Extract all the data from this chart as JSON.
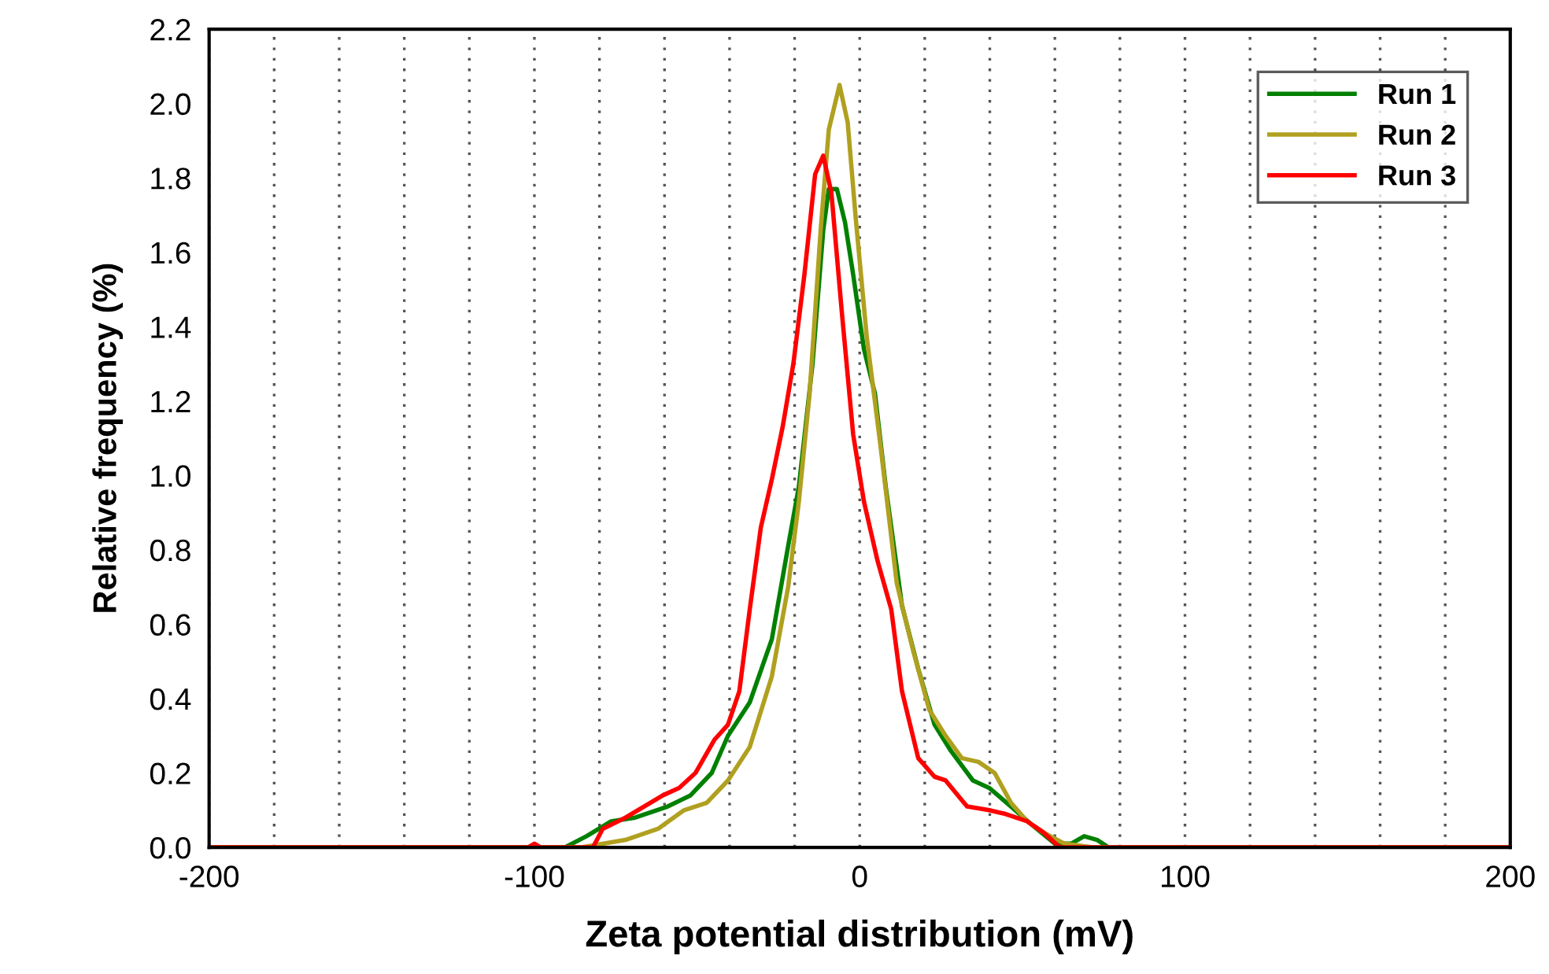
{
  "chart_data": {
    "type": "line",
    "xlabel": "Zeta potential distribution (mV)",
    "ylabel": "Relative frequency (%)",
    "xlim": [
      -200,
      200
    ],
    "ylim": [
      0,
      2.2
    ],
    "xticks": [
      -200,
      {
        "value": -180,
        "label": null
      },
      {
        "value": -160,
        "label": null
      },
      {
        "value": -140,
        "label": null
      },
      {
        "value": -120,
        "label": null
      },
      -100,
      {
        "value": -80,
        "label": null
      },
      {
        "value": -60,
        "label": null
      },
      {
        "value": -40,
        "label": null
      },
      {
        "value": -20,
        "label": null
      },
      0,
      {
        "value": 20,
        "label": null
      },
      {
        "value": 40,
        "label": null
      },
      {
        "value": 60,
        "label": null
      },
      {
        "value": 80,
        "label": null
      },
      100,
      {
        "value": 120,
        "label": null
      },
      {
        "value": 140,
        "label": null
      },
      {
        "value": 160,
        "label": null
      },
      {
        "value": 180,
        "label": null
      },
      200
    ],
    "yticks": [
      {
        "value": 0,
        "label": "0.0"
      },
      {
        "value": 0.2,
        "label": "0.2"
      },
      {
        "value": 0.4,
        "label": "0.4"
      },
      {
        "value": 0.6,
        "label": "0.6"
      },
      {
        "value": 0.8,
        "label": "0.8"
      },
      {
        "value": 1.0,
        "label": "1.0"
      },
      {
        "value": 1.2,
        "label": "1.2"
      },
      {
        "value": 1.4,
        "label": "1.4"
      },
      {
        "value": 1.6,
        "label": "1.6"
      },
      {
        "value": 1.8,
        "label": "1.8"
      },
      {
        "value": 2.0,
        "label": "2.0"
      },
      {
        "value": 2.2,
        "label": "2.2"
      }
    ],
    "grid": "x",
    "legend": "top right",
    "marker": "none",
    "line_style": "solid",
    "series": [
      {
        "name": "Run 1",
        "color": "#008000",
        "x": [
          -200,
          -90.6,
          -84,
          -76.4,
          -69,
          -59,
          -52,
          -45.5,
          -40.5,
          -33.8,
          -27,
          -22,
          -18.7,
          -14.5,
          -11.2,
          -9.5,
          -7,
          -4.5,
          -2,
          1.3,
          4.7,
          8,
          13,
          18,
          23,
          28,
          34.8,
          39.8,
          46.5,
          53,
          60,
          65,
          69,
          73,
          76.5,
          200
        ],
        "values": [
          0,
          0,
          0.03,
          0.07,
          0.08,
          0.11,
          0.14,
          0.2,
          0.3,
          0.39,
          0.56,
          0.81,
          0.97,
          1.3,
          1.66,
          1.77,
          1.77,
          1.68,
          1.54,
          1.34,
          1.22,
          0.97,
          0.65,
          0.48,
          0.33,
          0.26,
          0.18,
          0.16,
          0.11,
          0.06,
          0.01,
          0.01,
          0.03,
          0.02,
          0,
          0
        ]
      },
      {
        "name": "Run 2",
        "color": "#b0a020",
        "x": [
          -200,
          -85.6,
          -72,
          -62,
          -54,
          -47,
          -40.5,
          -33.8,
          -27,
          -22,
          -18.7,
          -15.4,
          -12,
          -9.5,
          -6.2,
          -3.7,
          -1.2,
          2.2,
          6.4,
          11.4,
          16.4,
          21.4,
          26.4,
          31.4,
          36.5,
          41.5,
          46.5,
          51.5,
          56.5,
          63,
          71.6,
          200
        ],
        "values": [
          0,
          0,
          0.02,
          0.05,
          0.1,
          0.12,
          0.18,
          0.27,
          0.46,
          0.7,
          0.93,
          1.22,
          1.66,
          1.93,
          2.05,
          1.95,
          1.69,
          1.37,
          1.08,
          0.71,
          0.53,
          0.37,
          0.3,
          0.24,
          0.23,
          0.2,
          0.12,
          0.07,
          0.04,
          0.01,
          0,
          0
        ]
      },
      {
        "name": "Run 3",
        "color": "#ff0000",
        "x": [
          -200,
          -102,
          -100,
          -98,
          -82,
          -79,
          -72,
          -60.5,
          -55.5,
          -50.5,
          -44.6,
          -40.5,
          -37,
          -33.8,
          -30.4,
          -27,
          -23.7,
          -20.4,
          -17,
          -13.7,
          -11.2,
          -8.7,
          -5.4,
          -2,
          1.3,
          5.5,
          9.7,
          13,
          18,
          23,
          26.4,
          33,
          39.8,
          44.8,
          51.5,
          56.5,
          61.5,
          200
        ],
        "values": [
          0,
          0,
          0.01,
          0,
          0,
          0.05,
          0.08,
          0.14,
          0.16,
          0.2,
          0.29,
          0.33,
          0.42,
          0.64,
          0.86,
          0.99,
          1.13,
          1.3,
          1.54,
          1.81,
          1.86,
          1.76,
          1.43,
          1.11,
          0.93,
          0.77,
          0.64,
          0.42,
          0.24,
          0.19,
          0.18,
          0.11,
          0.1,
          0.09,
          0.07,
          0.04,
          0,
          0
        ]
      }
    ]
  }
}
